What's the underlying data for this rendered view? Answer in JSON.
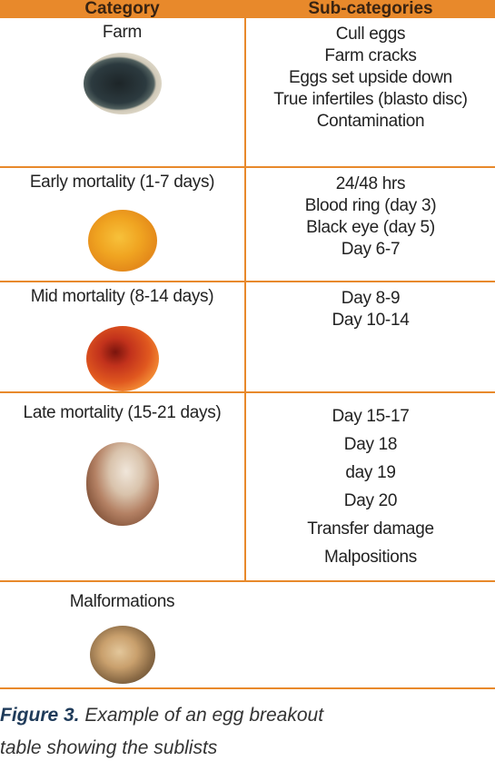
{
  "table": {
    "headers": [
      "Category",
      "Sub-categories"
    ],
    "rows": [
      {
        "category": "Farm",
        "image_icon": "egg-broken-dark-icon",
        "subcategories": [
          "Cull eggs",
          "Farm cracks",
          "Eggs set upside down",
          "True infertiles (blasto disc)",
          "Contamination"
        ]
      },
      {
        "category": "Early mortality (1-7 days)",
        "image_icon": "egg-yolk-icon",
        "subcategories": [
          "24/48 hrs",
          "Blood ring (day 3)",
          "Black eye (day 5)",
          "Day 6-7"
        ]
      },
      {
        "category": "Mid mortality (8-14 days)",
        "image_icon": "egg-embryo-red-icon",
        "subcategories": [
          "Day 8-9",
          "Day 10-14"
        ]
      },
      {
        "category": "Late mortality (15-21 days)",
        "image_icon": "egg-chick-shell-icon",
        "subcategories": [
          "Day 15-17",
          "Day 18",
          "day 19",
          "Day 20",
          "Transfer damage",
          "Malpositions"
        ]
      },
      {
        "category": "Malformations",
        "image_icon": "egg-malformed-icon",
        "subcategories": []
      }
    ]
  },
  "caption": {
    "figure_label": "Figure 3.",
    "text": "Example of an egg breakout",
    "cut_line": "table showing the sublists"
  },
  "colors": {
    "accent": "#E8892B",
    "caption_label": "#1F3B5A"
  }
}
